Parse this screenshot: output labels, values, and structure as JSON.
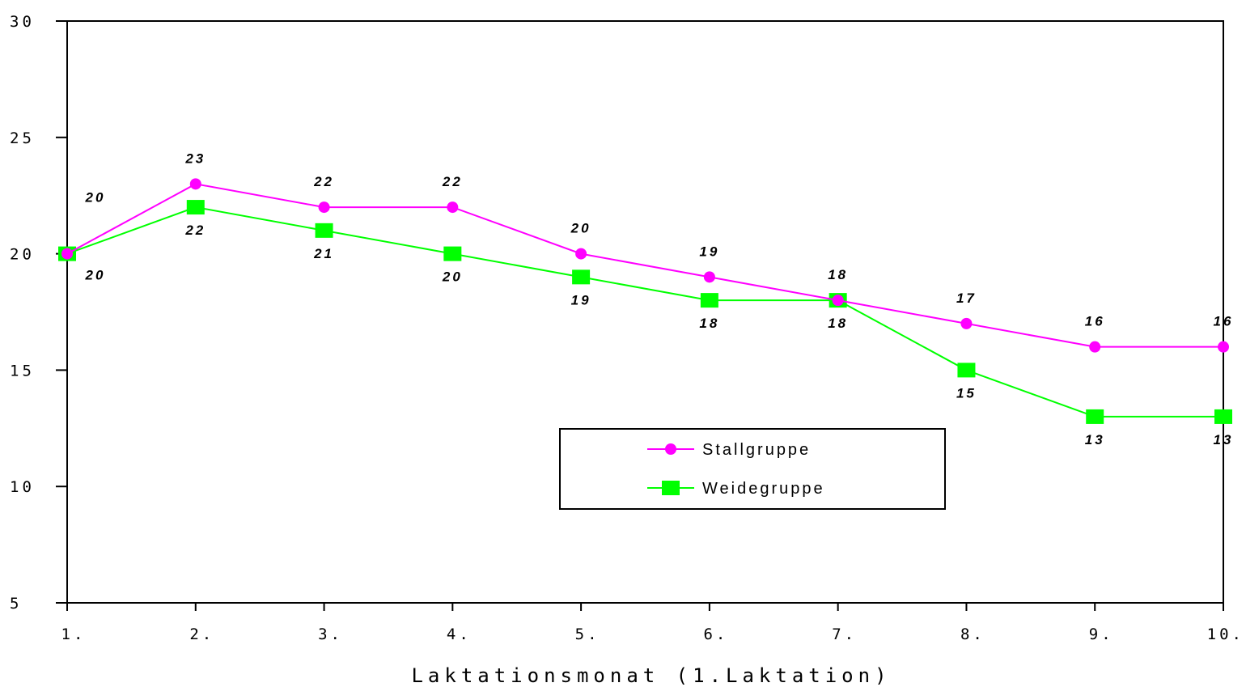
{
  "chart_data": {
    "type": "line",
    "categories": [
      "1.",
      "2.",
      "3.",
      "4.",
      "5.",
      "6.",
      "7.",
      "8.",
      "9.",
      "10."
    ],
    "series": [
      {
        "name": "Stallgruppe",
        "color": "#ff00ff",
        "marker": "circle",
        "values": [
          20,
          23,
          22,
          22,
          20,
          19,
          18,
          17,
          16,
          16
        ],
        "labels": [
          "20",
          "23",
          "22",
          "22",
          "20",
          "19",
          "18",
          "17",
          "16",
          "16"
        ]
      },
      {
        "name": "Weidegruppe",
        "color": "#00ff00",
        "marker": "square",
        "values": [
          20,
          22,
          21,
          20,
          19,
          18,
          18,
          15,
          13,
          13
        ],
        "labels": [
          "20",
          "22",
          "21",
          "20",
          "19",
          "18",
          "18",
          "15",
          "13",
          "13"
        ]
      }
    ],
    "xlabel": "Laktationsmonat (1.Laktation)",
    "ylabel": "",
    "ylim": [
      5,
      30
    ],
    "yticks": [
      "5",
      "10",
      "15",
      "20",
      "25",
      "30"
    ],
    "grid": false,
    "legend_position": "bottom-center"
  }
}
